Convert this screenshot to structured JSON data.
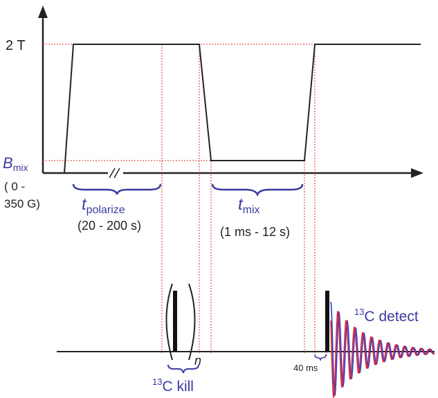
{
  "field_levels": {
    "high": "2 T",
    "mix_symbol": "B",
    "mix_subscript": "mix",
    "mix_range_line1": "( 0 -",
    "mix_range_line2": "350 G)"
  },
  "periods": {
    "polarize": {
      "symbol": "t",
      "subscript": "polarize",
      "range": "(20 - 200 s)"
    },
    "mix": {
      "symbol": "t",
      "subscript": "mix",
      "range": "(1 ms - 12 s)"
    }
  },
  "pulses": {
    "kill_superscript": "13",
    "kill_label": "C kill",
    "repeat_symbol": "n",
    "detect_superscript": "13",
    "detect_label": "C detect",
    "delay_label": "40 ms"
  },
  "colors": {
    "field_line": "#222222",
    "guide_lines": "#e03030",
    "labels_blue": "#3a3aa0",
    "fid_red": "#e0202a",
    "fid_blue": "#2a3ad0"
  }
}
